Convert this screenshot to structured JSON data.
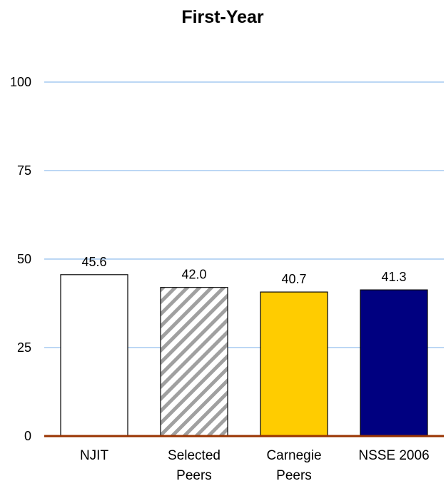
{
  "chart_data": {
    "type": "bar",
    "title": "First-Year",
    "xlabel": "",
    "ylabel": "",
    "ylim": [
      0,
      100
    ],
    "yticks": [
      0,
      25,
      50,
      75,
      100
    ],
    "grid": true,
    "legend": "none",
    "categories": [
      [
        "NJIT"
      ],
      [
        "Selected",
        "Peers"
      ],
      [
        "Carnegie",
        "Peers"
      ],
      [
        "NSSE 2006"
      ]
    ],
    "values": [
      45.6,
      42.0,
      40.7,
      41.3
    ],
    "value_labels": [
      "45.6",
      "42.0",
      "40.7",
      "41.3"
    ],
    "bar_styles": [
      {
        "fill": "#ffffff",
        "pattern": "none"
      },
      {
        "fill": "#ffffff",
        "pattern": "diagonal-hatch",
        "hatch_color": "#a0a0a0"
      },
      {
        "fill": "#ffcc00",
        "pattern": "none"
      },
      {
        "fill": "#000080",
        "pattern": "none"
      }
    ],
    "colors": {
      "grid": "#a6caf0",
      "baseline": "#993300",
      "bar_outline": "#000000"
    }
  }
}
